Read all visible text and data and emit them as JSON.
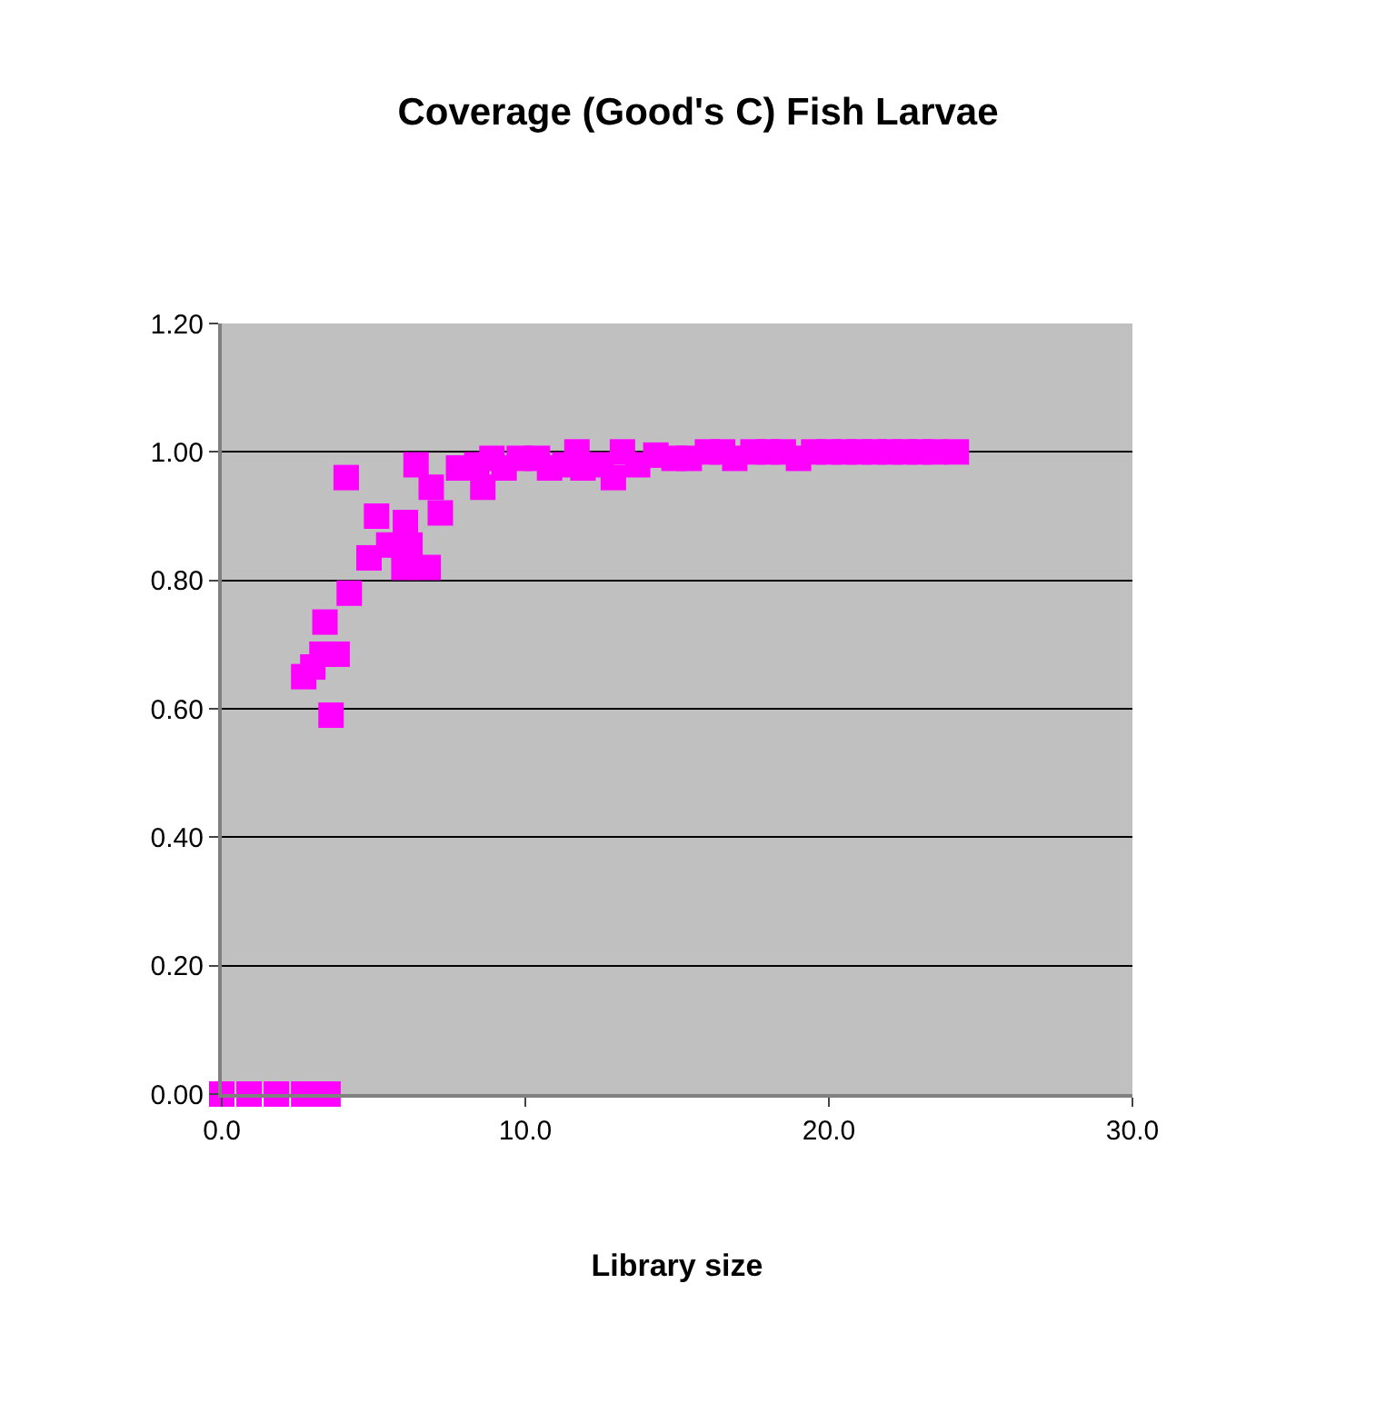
{
  "chart_data": {
    "type": "scatter",
    "title": "Coverage (Good's C) Fish Larvae",
    "xlabel": "Library size",
    "xlim": [
      0,
      30
    ],
    "xticks": [
      {
        "value": 0,
        "label": "0.0"
      },
      {
        "value": 10,
        "label": "10.0"
      },
      {
        "value": 20,
        "label": "20.0"
      },
      {
        "value": 30,
        "label": "30.0"
      }
    ],
    "ylim": [
      0,
      1.2
    ],
    "yticks": [
      {
        "value": 0,
        "label": "0.00"
      },
      {
        "value": 0.2,
        "label": "0.20"
      },
      {
        "value": 0.4,
        "label": "0.40"
      },
      {
        "value": 0.6,
        "label": "0.60"
      },
      {
        "value": 0.8,
        "label": "0.80"
      },
      {
        "value": 1,
        "label": "1.00"
      },
      {
        "value": 1.2,
        "label": "1.20"
      }
    ],
    "grid": "y",
    "legend": false,
    "marker": "square",
    "series": [
      {
        "color": "#ff00ff",
        "x": [
          0,
          0.9,
          1.8,
          2.7,
          3.5,
          2.7,
          3.0,
          3.3,
          3.4,
          3.6,
          3.8,
          4.2,
          4.1,
          4.85,
          5.1,
          5.5,
          6.0,
          6.05,
          6.2,
          6.4,
          6.8,
          6.9,
          7.2,
          7.8,
          8.4,
          8.6,
          8.9,
          9.3,
          9.8,
          10.4,
          10.8,
          11.3,
          11.7,
          11.9,
          12.5,
          12.9,
          13.2,
          13.7,
          14.3,
          14.9,
          15.4,
          16.0,
          16.5,
          16.9,
          17.5,
          18.0,
          18.5,
          19.0,
          19.5,
          20.0,
          20.5,
          21.0,
          21.5,
          22.0,
          22.5,
          23.0,
          23.5,
          24.2
        ],
        "values": [
          0,
          0,
          0,
          0,
          0,
          0.65,
          0.665,
          0.685,
          0.735,
          0.59,
          0.685,
          0.78,
          0.96,
          0.835,
          0.9,
          0.855,
          0.82,
          0.89,
          0.855,
          0.98,
          0.82,
          0.945,
          0.905,
          0.975,
          0.98,
          0.945,
          0.99,
          0.975,
          0.99,
          0.99,
          0.975,
          0.98,
          1.0,
          0.975,
          0.98,
          0.96,
          1.0,
          0.98,
          0.995,
          0.99,
          0.99,
          1.0,
          1.0,
          0.99,
          1.0,
          1.0,
          1.0,
          0.99,
          1.0,
          1.0,
          1.0,
          1.0,
          1.0,
          1.0,
          1.0,
          1.0,
          1.0,
          1.0
        ]
      }
    ]
  }
}
